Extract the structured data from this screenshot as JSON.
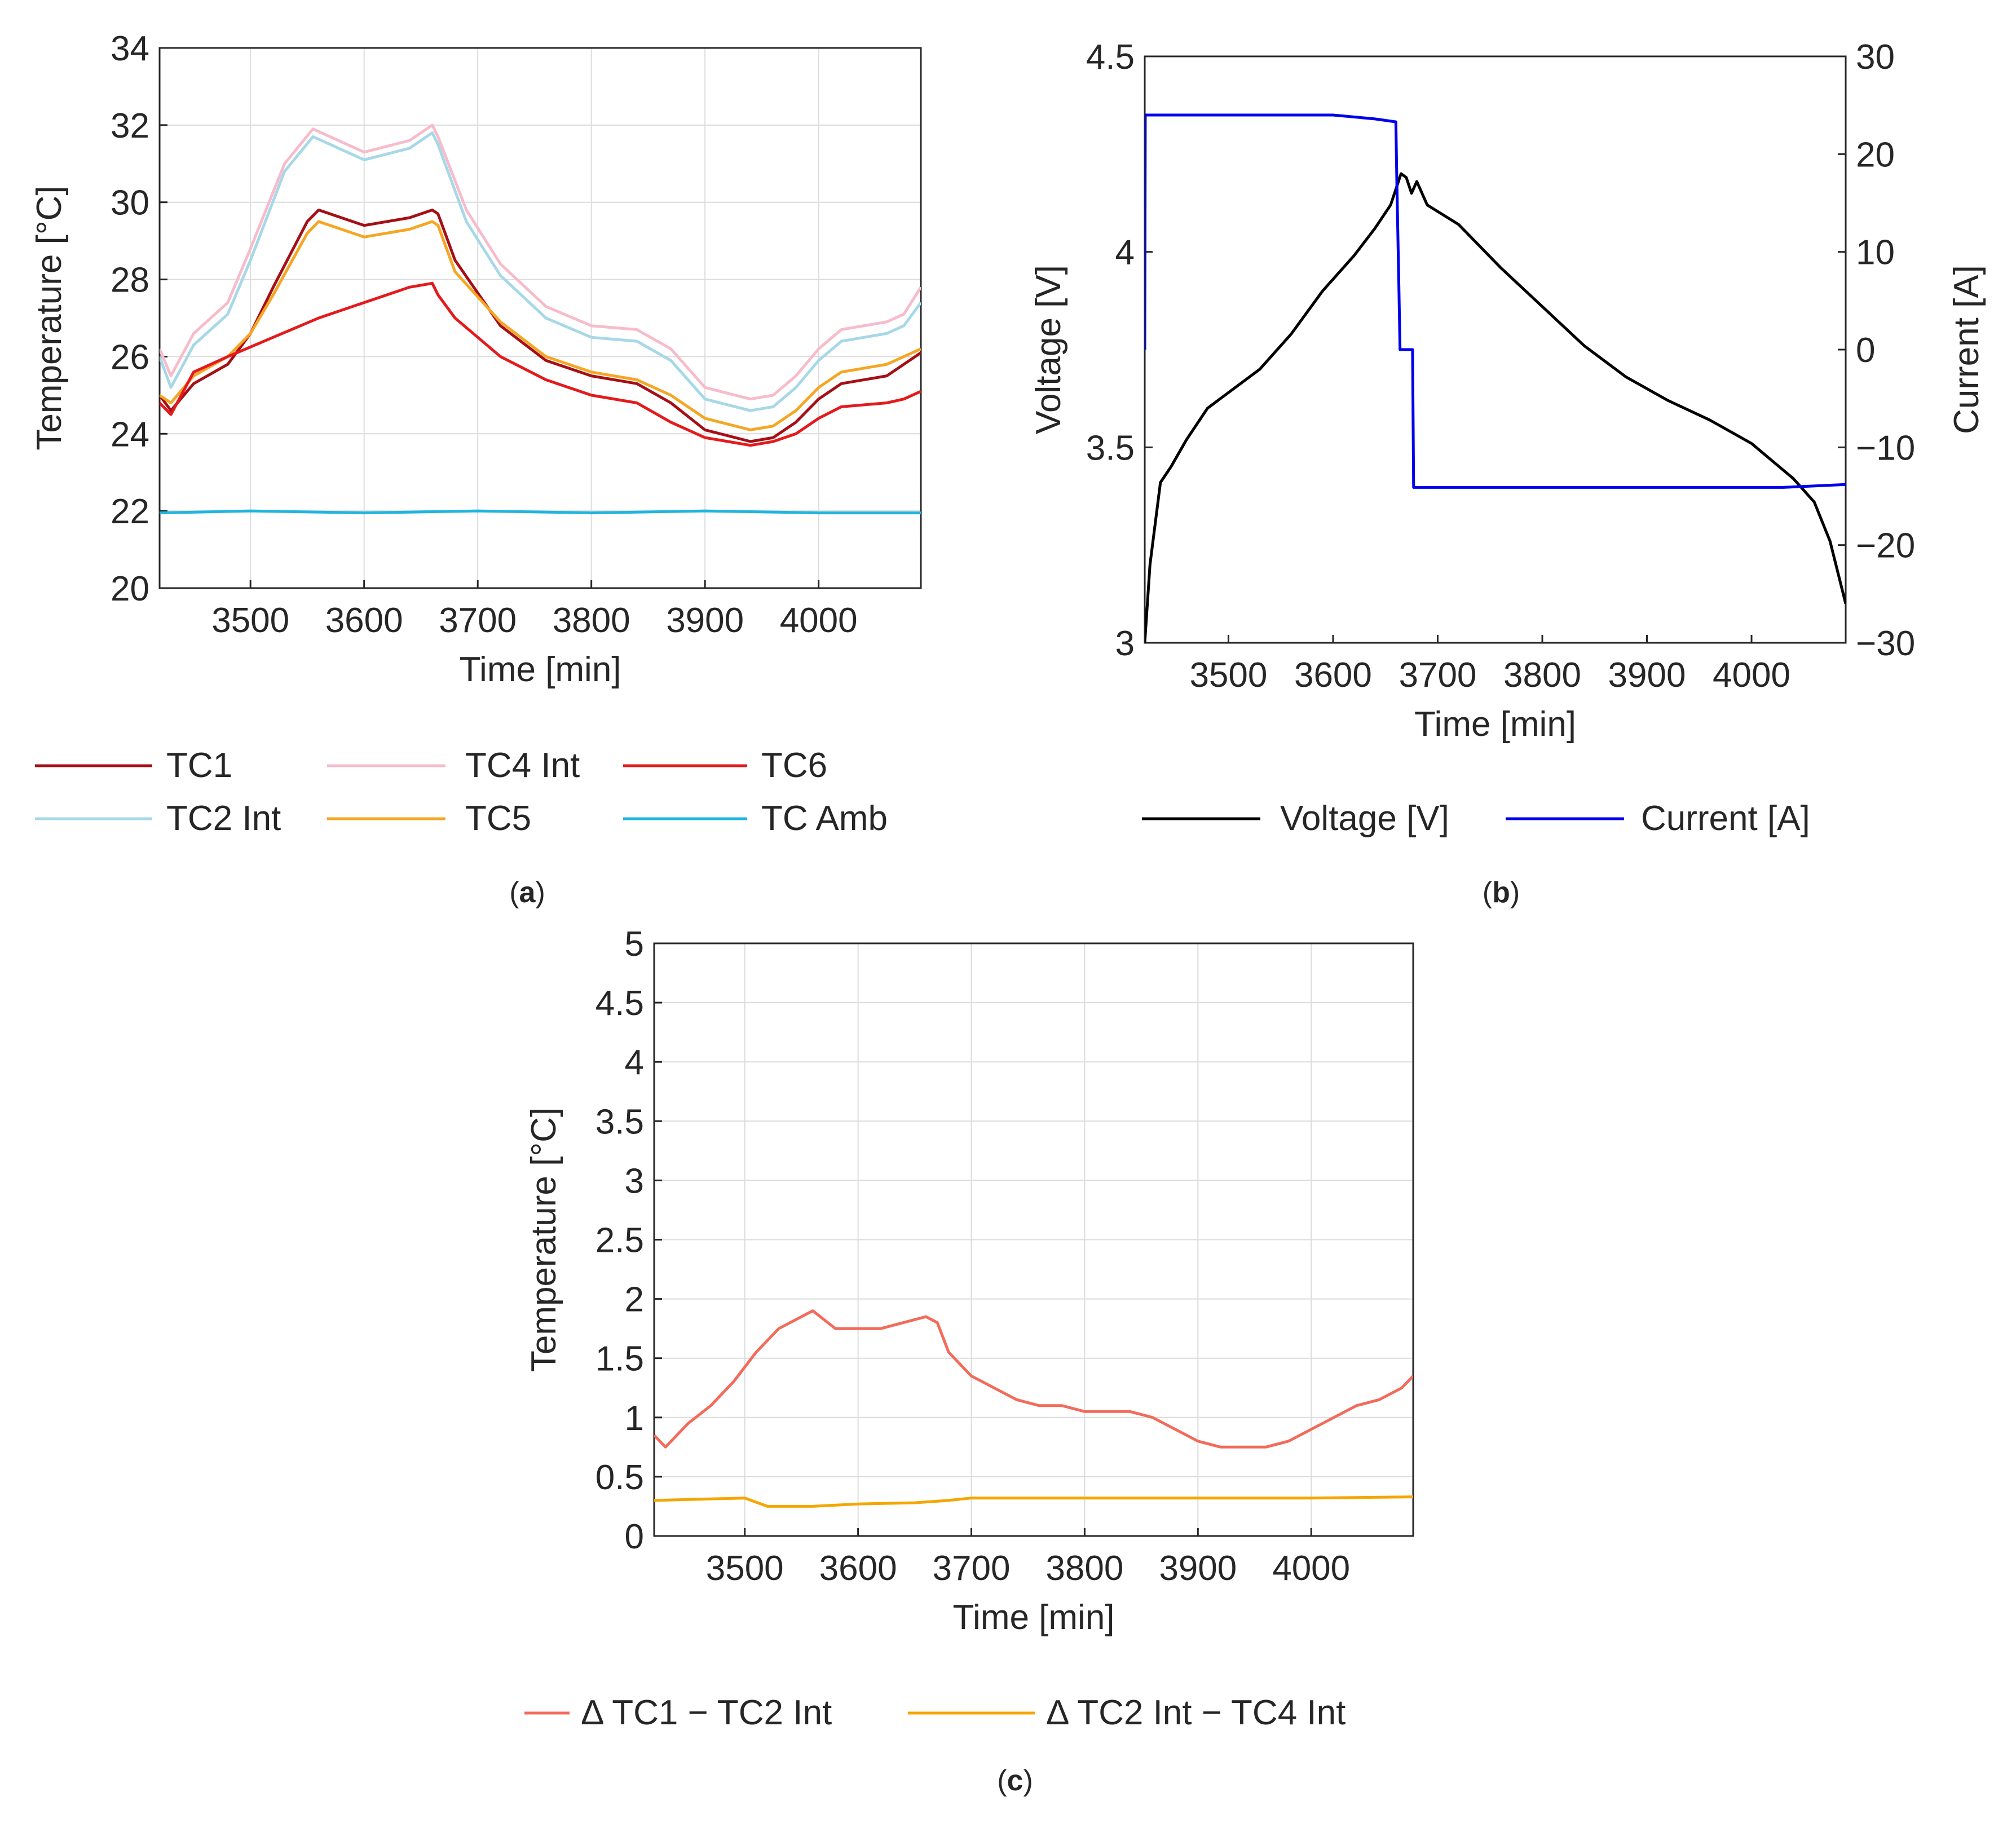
{
  "chart_data": [
    {
      "id": "a",
      "type": "line",
      "panel_label": "a",
      "xlabel": "Time [min]",
      "ylabel": "Temperature [°C]",
      "xlim": [
        3420,
        4090
      ],
      "ylim": [
        20,
        34
      ],
      "xticks": [
        3500,
        3600,
        3700,
        3800,
        3900,
        4000
      ],
      "yticks": [
        20,
        22,
        24,
        26,
        28,
        30,
        32,
        34
      ],
      "grid": true,
      "legend_position": "bottom",
      "series": [
        {
          "name": "TC1",
          "color": "#a50f15",
          "x": [
            3420,
            3430,
            3450,
            3480,
            3500,
            3520,
            3550,
            3560,
            3600,
            3640,
            3660,
            3665,
            3680,
            3720,
            3760,
            3800,
            3840,
            3870,
            3900,
            3940,
            3960,
            3980,
            4000,
            4020,
            4060,
            4075,
            4090
          ],
          "y": [
            25.0,
            24.6,
            25.3,
            25.8,
            26.6,
            27.8,
            29.5,
            29.8,
            29.4,
            29.6,
            29.8,
            29.7,
            28.5,
            26.8,
            25.9,
            25.5,
            25.3,
            24.8,
            24.1,
            23.8,
            23.9,
            24.3,
            24.9,
            25.3,
            25.5,
            25.8,
            26.1
          ]
        },
        {
          "name": "TC2 Int",
          "color": "#a6d8e8",
          "x": [
            3420,
            3430,
            3450,
            3480,
            3500,
            3530,
            3555,
            3600,
            3640,
            3660,
            3665,
            3690,
            3720,
            3760,
            3800,
            3840,
            3870,
            3900,
            3940,
            3960,
            3980,
            4000,
            4020,
            4060,
            4075,
            4090
          ],
          "y": [
            26.0,
            25.2,
            26.3,
            27.1,
            28.5,
            30.8,
            31.7,
            31.1,
            31.4,
            31.8,
            31.5,
            29.5,
            28.1,
            27.0,
            26.5,
            26.4,
            25.9,
            24.9,
            24.6,
            24.7,
            25.2,
            25.9,
            26.4,
            26.6,
            26.8,
            27.4
          ]
        },
        {
          "name": "TC4 Int",
          "color": "#f7bccb",
          "x": [
            3420,
            3430,
            3450,
            3480,
            3500,
            3530,
            3555,
            3600,
            3640,
            3660,
            3665,
            3690,
            3720,
            3760,
            3800,
            3840,
            3870,
            3900,
            3940,
            3960,
            3980,
            4000,
            4020,
            4060,
            4075,
            4090
          ],
          "y": [
            26.2,
            25.5,
            26.6,
            27.4,
            28.8,
            31.0,
            31.9,
            31.3,
            31.6,
            32.0,
            31.7,
            29.8,
            28.4,
            27.3,
            26.8,
            26.7,
            26.2,
            25.2,
            24.9,
            25.0,
            25.5,
            26.2,
            26.7,
            26.9,
            27.1,
            27.8
          ]
        },
        {
          "name": "TC5",
          "color": "#f5a623",
          "x": [
            3420,
            3430,
            3450,
            3480,
            3500,
            3520,
            3550,
            3560,
            3600,
            3640,
            3660,
            3665,
            3680,
            3720,
            3760,
            3800,
            3840,
            3870,
            3900,
            3940,
            3960,
            3980,
            4000,
            4020,
            4060,
            4075,
            4090
          ],
          "y": [
            25.0,
            24.8,
            25.5,
            26.0,
            26.6,
            27.6,
            29.2,
            29.5,
            29.1,
            29.3,
            29.5,
            29.4,
            28.2,
            26.9,
            26.0,
            25.6,
            25.4,
            25.0,
            24.4,
            24.1,
            24.2,
            24.6,
            25.2,
            25.6,
            25.8,
            26.0,
            26.2
          ]
        },
        {
          "name": "TC6",
          "color": "#e41a1c",
          "x": [
            3420,
            3430,
            3450,
            3480,
            3520,
            3560,
            3600,
            3640,
            3660,
            3665,
            3680,
            3720,
            3760,
            3800,
            3840,
            3870,
            3900,
            3940,
            3960,
            3980,
            4000,
            4020,
            4060,
            4075,
            4090
          ],
          "y": [
            24.8,
            24.5,
            25.6,
            26.0,
            26.5,
            27.0,
            27.4,
            27.8,
            27.9,
            27.6,
            27.0,
            26.0,
            25.4,
            25.0,
            24.8,
            24.3,
            23.9,
            23.7,
            23.8,
            24.0,
            24.4,
            24.7,
            24.8,
            24.9,
            25.1
          ]
        },
        {
          "name": "TC Amb",
          "color": "#1fb5e0",
          "x": [
            3420,
            3500,
            3600,
            3700,
            3800,
            3900,
            4000,
            4090
          ],
          "y": [
            21.95,
            22.0,
            21.95,
            22.0,
            21.95,
            22.0,
            21.95,
            21.95
          ]
        }
      ],
      "legend": [
        "TC1",
        "TC4 Int",
        "TC6",
        "TC2 Int",
        "TC5",
        "TC Amb"
      ]
    },
    {
      "id": "b",
      "type": "line",
      "panel_label": "b",
      "xlabel": "Time [min]",
      "ylabel": "Voltage [V]",
      "ylabel_right": "Current [A]",
      "xlim": [
        3420,
        4090
      ],
      "ylim": [
        3,
        4.5
      ],
      "ylim_right": [
        -30,
        30
      ],
      "xticks": [
        3500,
        3600,
        3700,
        3800,
        3900,
        4000
      ],
      "yticks": [
        3,
        3.5,
        4,
        4.5
      ],
      "yticks_right": [
        -30,
        -20,
        -10,
        0,
        10,
        20,
        30
      ],
      "grid": false,
      "legend_position": "bottom",
      "series": [
        {
          "name": "Voltage [V]",
          "color": "#000000",
          "axis": "left",
          "x": [
            3420,
            3425,
            3435,
            3445,
            3460,
            3480,
            3500,
            3530,
            3560,
            3590,
            3620,
            3640,
            3655,
            3665,
            3670,
            3675,
            3680,
            3690,
            3720,
            3760,
            3800,
            3840,
            3880,
            3920,
            3960,
            4000,
            4040,
            4060,
            4075,
            4090
          ],
          "y": [
            3.0,
            3.2,
            3.41,
            3.45,
            3.52,
            3.6,
            3.64,
            3.7,
            3.79,
            3.9,
            3.99,
            4.06,
            4.12,
            4.2,
            4.19,
            4.15,
            4.18,
            4.12,
            4.07,
            3.96,
            3.86,
            3.76,
            3.68,
            3.62,
            3.57,
            3.51,
            3.42,
            3.36,
            3.26,
            3.1
          ]
        },
        {
          "name": "Current [A]",
          "color": "#0000ee",
          "axis": "right",
          "x": [
            3420,
            3420.5,
            3600,
            3640,
            3660,
            3661,
            3663,
            3664,
            3668,
            3676,
            3677,
            4030,
            4090
          ],
          "y": [
            0,
            24,
            24,
            23.6,
            23.3,
            17,
            6,
            0,
            0,
            0,
            -14.1,
            -14.1,
            -13.8
          ]
        }
      ],
      "legend": [
        "Voltage [V]",
        "Current [A]"
      ]
    },
    {
      "id": "c",
      "type": "line",
      "panel_label": "c",
      "xlabel": "Time [min]",
      "ylabel": "Temperature [°C]",
      "xlim": [
        3420,
        4090
      ],
      "ylim": [
        0,
        5
      ],
      "xticks": [
        3500,
        3600,
        3700,
        3800,
        3900,
        4000
      ],
      "yticks": [
        0,
        0.5,
        1,
        1.5,
        2,
        2.5,
        3,
        3.5,
        4,
        4.5,
        5
      ],
      "ytick_labels": [
        "0",
        "0.5",
        "1",
        "1.5",
        "2",
        "2.5",
        "3",
        "3.5",
        "4",
        "4.5",
        "5"
      ],
      "grid": true,
      "legend_position": "bottom",
      "series": [
        {
          "name": "Δ TC1 − TC2 Int",
          "color": "#f26b5b",
          "x": [
            3420,
            3430,
            3450,
            3470,
            3490,
            3510,
            3530,
            3550,
            3560,
            3580,
            3600,
            3620,
            3640,
            3660,
            3670,
            3680,
            3700,
            3720,
            3740,
            3760,
            3780,
            3800,
            3840,
            3860,
            3880,
            3900,
            3920,
            3940,
            3960,
            3980,
            4000,
            4020,
            4040,
            4060,
            4080,
            4090
          ],
          "y": [
            0.85,
            0.75,
            0.95,
            1.1,
            1.3,
            1.55,
            1.75,
            1.85,
            1.9,
            1.75,
            1.75,
            1.75,
            1.8,
            1.85,
            1.8,
            1.55,
            1.35,
            1.25,
            1.15,
            1.1,
            1.1,
            1.05,
            1.05,
            1.0,
            0.9,
            0.8,
            0.75,
            0.75,
            0.75,
            0.8,
            0.9,
            1.0,
            1.1,
            1.15,
            1.25,
            1.35
          ]
        },
        {
          "name": "Δ TC2 Int − TC4 Int",
          "color": "#f5a600",
          "x": [
            3420,
            3500,
            3520,
            3560,
            3600,
            3650,
            3680,
            3700,
            3800,
            3900,
            4000,
            4090
          ],
          "y": [
            0.3,
            0.32,
            0.25,
            0.25,
            0.27,
            0.28,
            0.3,
            0.32,
            0.32,
            0.32,
            0.32,
            0.33
          ]
        }
      ],
      "legend": [
        "Δ TC1 − TC2 Int",
        "Δ TC2 Int − TC4 Int"
      ]
    }
  ]
}
